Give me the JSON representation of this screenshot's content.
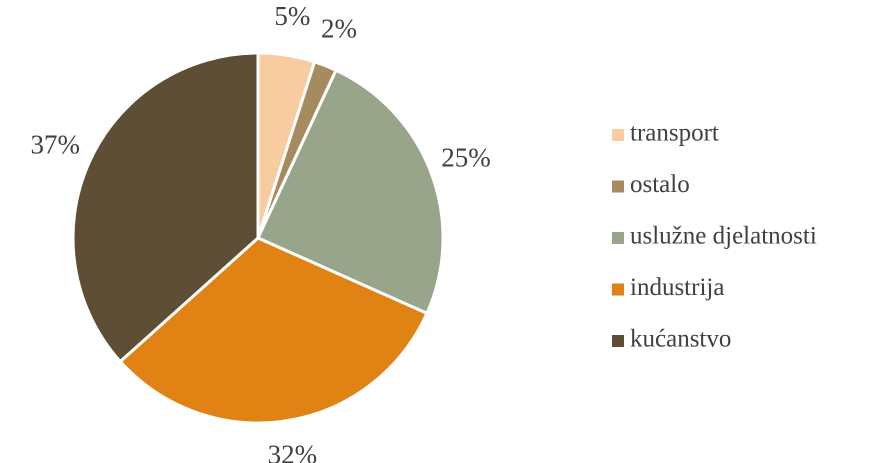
{
  "chart_data": {
    "type": "pie",
    "categories": [
      "transport",
      "ostalo",
      "uslužne djelatnosti",
      "industrija",
      "kućanstvo"
    ],
    "values": [
      5,
      2,
      25,
      32,
      37
    ],
    "value_labels": [
      "5%",
      "2%",
      "25%",
      "32%",
      "37%"
    ],
    "colors": [
      "#f8cba0",
      "#a58b5e",
      "#99a58a",
      "#e08214",
      "#5e4e35"
    ],
    "legend": "right"
  }
}
